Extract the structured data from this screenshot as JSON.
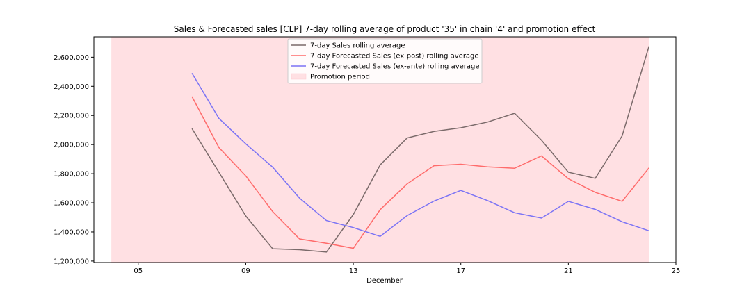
{
  "chart_data": {
    "type": "line",
    "title": "Sales & Forecasted sales [CLP] 7-day rolling average of product '35' in chain '4' and promotion effect",
    "xlabel": "December",
    "ylabel": "",
    "x_ticks": [
      "05",
      "09",
      "13",
      "17",
      "21",
      "25"
    ],
    "x_tick_days": [
      5,
      9,
      13,
      17,
      21,
      25
    ],
    "xlim": [
      3.35,
      25
    ],
    "y_ticks": [
      "1,200,000",
      "1,400,000",
      "1,600,000",
      "1,800,000",
      "2,000,000",
      "2,200,000",
      "2,400,000",
      "2,600,000"
    ],
    "y_tick_values": [
      1200000,
      1400000,
      1600000,
      1800000,
      2000000,
      2200000,
      2400000,
      2600000
    ],
    "ylim": [
      1190000,
      2740000
    ],
    "promotion_period": {
      "label": "Promotion period",
      "start_day": 4,
      "end_day": 24,
      "color": "#ffe0e3"
    },
    "legend_position": "upper center",
    "grid": false,
    "x": [
      7,
      8,
      9,
      10,
      11,
      12,
      13,
      14,
      15,
      16,
      17,
      18,
      19,
      20,
      21,
      22,
      23,
      24
    ],
    "series": [
      {
        "name": "7-day Sales rolling average",
        "color": "#7a6a6a",
        "values": [
          2110000,
          1810000,
          1510000,
          1285000,
          1278000,
          1262000,
          1520000,
          1860000,
          2045000,
          2090000,
          2115000,
          2155000,
          2215000,
          2030000,
          1810000,
          1768000,
          2060000,
          2675000
        ]
      },
      {
        "name": "7-day Forecasted Sales (ex-post) rolling average",
        "color": "#ff6b6b",
        "values": [
          2330000,
          1980000,
          1785000,
          1540000,
          1352000,
          1322000,
          1288000,
          1553000,
          1730000,
          1855000,
          1865000,
          1847000,
          1837000,
          1922000,
          1765000,
          1672000,
          1610000,
          1840000
        ]
      },
      {
        "name": "7-day Forecasted Sales (ex-ante) rolling average",
        "color": "#7b73f5",
        "values": [
          2490000,
          2180000,
          2005000,
          1845000,
          1632000,
          1478000,
          1430000,
          1370000,
          1512000,
          1612000,
          1685000,
          1615000,
          1532000,
          1495000,
          1610000,
          1555000,
          1470000,
          1408000
        ]
      }
    ]
  }
}
